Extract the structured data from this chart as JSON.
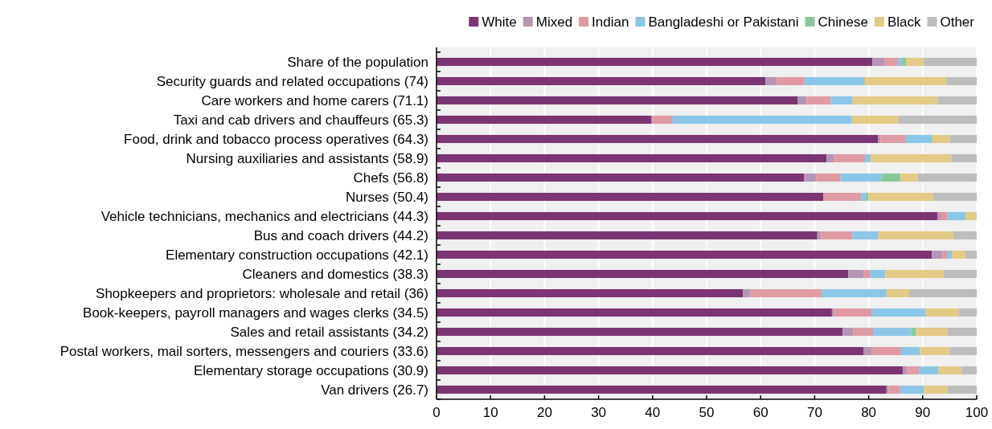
{
  "chart_data": {
    "type": "bar",
    "orientation": "horizontal",
    "stacked": true,
    "categories": [
      "Share of the population",
      "Security guards and related occupations (74)",
      "Care workers and home carers (71.1)",
      "Taxi and cab drivers and chauffeurs (65.3)",
      "Food, drink and tobacco process operatives (64.3)",
      "Nursing auxiliaries and assistants (58.9)",
      "Chefs (56.8)",
      "Nurses (50.4)",
      "Vehicle technicians, mechanics and electricians (44.3)",
      "Bus and coach drivers (44.2)",
      "Elementary construction occupations (42.1)",
      "Cleaners and domestics (38.3)",
      "Shopkeepers and proprietors: wholesale and retail (36)",
      "Book-keepers, payroll managers and wages clerks (34.5)",
      "Sales and retail assistants (34.2)",
      "Postal workers, mail sorters, messengers and couriers (33.6)",
      "Elementary storage occupations (30.9)",
      "Van drivers (26.7)"
    ],
    "series": [
      {
        "name": "White",
        "color": "#7b3572",
        "values": [
          80.7,
          60.9,
          66.9,
          39.8,
          81.7,
          72.2,
          68.0,
          71.6,
          92.7,
          70.5,
          91.7,
          76.2,
          56.7,
          73.2,
          75.2,
          79.1,
          86.3,
          83.3
        ]
      },
      {
        "name": "Mixed",
        "color": "#b496b4",
        "values": [
          2.2,
          2.1,
          1.6,
          0.3,
          0.5,
          1.4,
          2.3,
          0,
          0.6,
          0.7,
          2.0,
          2.9,
          1.4,
          0.4,
          1.9,
          1.4,
          0.8,
          0.4
        ]
      },
      {
        "name": "Indian",
        "color": "#e09aa3",
        "values": [
          2.5,
          5.1,
          4.5,
          3.6,
          4.7,
          5.8,
          4.5,
          7.0,
          1.3,
          5.8,
          0.8,
          1.2,
          13.2,
          6.9,
          3.7,
          5.5,
          2.2,
          2.1
        ]
      },
      {
        "name": "Bangladeshi or Pakistani",
        "color": "#8cc6e6",
        "values": [
          0.8,
          11.1,
          4.0,
          33.2,
          4.7,
          1.0,
          7.6,
          0.9,
          3.3,
          4.8,
          0.9,
          2.8,
          12.0,
          9.9,
          7.1,
          3.5,
          3.6,
          4.4
        ]
      },
      {
        "name": "Chinese",
        "color": "#8cc79b",
        "values": [
          0.7,
          0.1,
          0,
          0,
          0.2,
          0,
          3.5,
          0.5,
          0,
          0,
          0,
          0,
          0,
          0.2,
          0.9,
          0,
          0,
          0
        ]
      },
      {
        "name": "Black",
        "color": "#e4ca87",
        "values": [
          3.3,
          15.1,
          15.8,
          8.6,
          3.2,
          14.9,
          3.2,
          12.0,
          2.1,
          13.9,
          2.5,
          10.8,
          4.2,
          6.1,
          5.8,
          5.5,
          4.3,
          4.4
        ]
      },
      {
        "name": "Other",
        "color": "#bdbdbd",
        "values": [
          9.8,
          5.6,
          7.2,
          14.5,
          5.0,
          4.7,
          10.9,
          8.0,
          0,
          4.3,
          2.1,
          6.1,
          12.5,
          3.3,
          5.4,
          5.0,
          2.8,
          5.4
        ]
      }
    ],
    "xlim": [
      0,
      100
    ],
    "xticks": [
      0,
      10,
      20,
      30,
      40,
      50,
      60,
      70,
      80,
      90,
      100
    ],
    "grid": "x",
    "legend": "top right"
  }
}
